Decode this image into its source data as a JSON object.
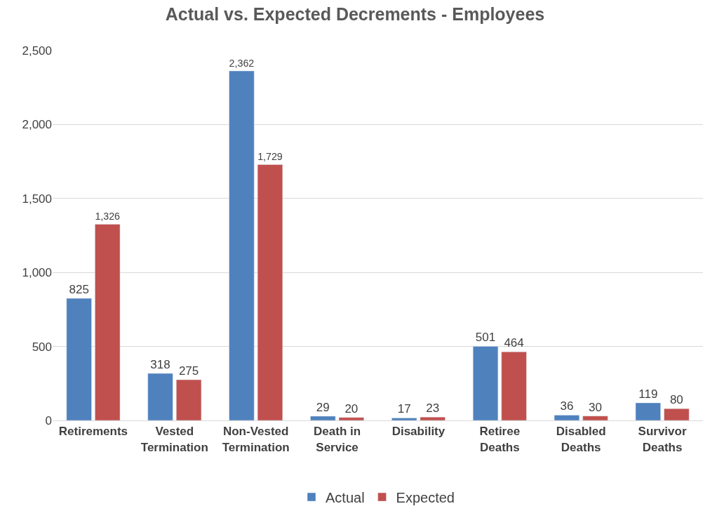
{
  "chart_data": {
    "type": "bar",
    "title": "Actual vs. Expected Decrements - Employees",
    "categories": [
      "Retirements",
      "Vested\nTermination",
      "Non-Vested\nTermination",
      "Death in\nService",
      "Disability",
      "Retiree\nDeaths",
      "Disabled\nDeaths",
      "Survivor\nDeaths"
    ],
    "series": [
      {
        "name": "Actual",
        "color": "#4f81bd",
        "values": [
          825,
          318,
          2362,
          29,
          17,
          501,
          36,
          119
        ],
        "value_labels": [
          "825",
          "318",
          "2,362",
          "29",
          "17",
          "501",
          "36",
          "119"
        ]
      },
      {
        "name": "Expected",
        "color": "#c0504d",
        "values": [
          1326,
          275,
          1729,
          20,
          23,
          464,
          30,
          80
        ],
        "value_labels": [
          "1,326",
          "275",
          "1,729",
          "20",
          "23",
          "464",
          "30",
          "80"
        ]
      }
    ],
    "ylim": [
      0,
      2500
    ],
    "yticks": [
      0,
      {
        "value": 500,
        "label": "500"
      },
      {
        "value": 1000,
        "label": "1,000"
      },
      {
        "value": 1500,
        "label": "1,500"
      },
      {
        "value": 2000,
        "label": "2,000"
      },
      {
        "value": 2500,
        "label": "2,500"
      }
    ],
    "grid": "y",
    "legend": "bottom"
  }
}
